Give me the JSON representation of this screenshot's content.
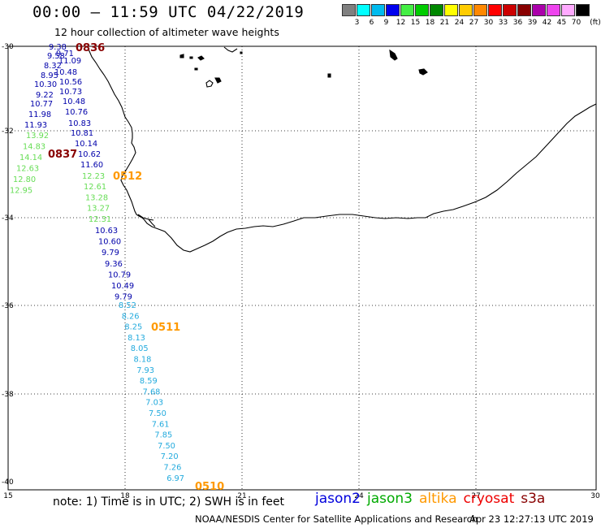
{
  "title": "00:00 – 11:59 UTC 04/22/2019",
  "subtitle": "12 hour collection of altimeter wave heights",
  "colorbar": {
    "unit": "(ft)",
    "colors": [
      "#808080",
      "#00ffff",
      "#00bbee",
      "#0000ee",
      "#44ee44",
      "#00cc00",
      "#008800",
      "#ffff00",
      "#ffcc00",
      "#ff8800",
      "#ff0000",
      "#cc0000",
      "#880000",
      "#aa00aa",
      "#ee44ee",
      "#ffaaff",
      "#000000"
    ],
    "labels": [
      "3",
      "6",
      "9",
      "12",
      "15",
      "18",
      "21",
      "24",
      "27",
      "30",
      "33",
      "36",
      "39",
      "42",
      "45",
      "70"
    ]
  },
  "axes": {
    "x_ticks": [
      "15",
      "18",
      "21",
      "24",
      "27",
      "30"
    ],
    "y_ticks": [
      "-30",
      "-32",
      "-34",
      "-36",
      "-38",
      "-40"
    ]
  },
  "passes": [
    {
      "label": "0836",
      "satellite": "cryosat"
    },
    {
      "label": "0837",
      "satellite": "cryosat"
    },
    {
      "label": "0512",
      "satellite": "altika"
    },
    {
      "label": "0511",
      "satellite": "altika"
    },
    {
      "label": "0510",
      "satellite": "altika"
    }
  ],
  "tracks": {
    "t1_color": "#0000aa",
    "t1": [
      "9.38",
      "9.71",
      "9.58",
      "11.09",
      "8.32",
      "10.48",
      "8.95",
      "10.56",
      "10.30",
      "10.73",
      "9.22",
      "10.48",
      "10.77",
      "10.76",
      "11.98",
      "10.83",
      "11.93",
      "10.81",
      "10.14",
      "10.62",
      "11.60"
    ],
    "t2_color": "#66dd55",
    "t2": [
      "13.92",
      "14.83",
      "14.14",
      "12.63",
      "12.80",
      "12.95"
    ],
    "t3_color": "#66dd55",
    "t3": [
      "12.23",
      "12.61",
      "13.28",
      "13.27",
      "12.31"
    ],
    "t4_color": "#0000aa",
    "t4": [
      "10.63",
      "10.60",
      "9.79",
      "9.36",
      "10.79",
      "10.49",
      "9.79"
    ],
    "t5_color": "#22aadd",
    "t5": [
      "8.52",
      "8.26",
      "8.25",
      "8.13",
      "8.05",
      "8.18",
      "7.93",
      "8.59",
      "7.68",
      "7.03",
      "7.50",
      "7.61",
      "7.85",
      "7.50",
      "7.20",
      "7.26",
      "6.97"
    ]
  },
  "footer": {
    "note": "note:  1) Time is in UTC;  2) SWH is in feet",
    "satellites": [
      {
        "name": "jason2",
        "color": "#0000dd"
      },
      {
        "name": "jason3",
        "color": "#00aa00"
      },
      {
        "name": "altika",
        "color": "#ff9900"
      },
      {
        "name": "cryosat",
        "color": "#ee0000"
      },
      {
        "name": "s3a",
        "color": "#880000"
      }
    ],
    "credit": "NOAA/NESDIS Center for Satellite Applications and Research",
    "timestamp": "Apr 23 12:27:13 UTC 2019"
  }
}
